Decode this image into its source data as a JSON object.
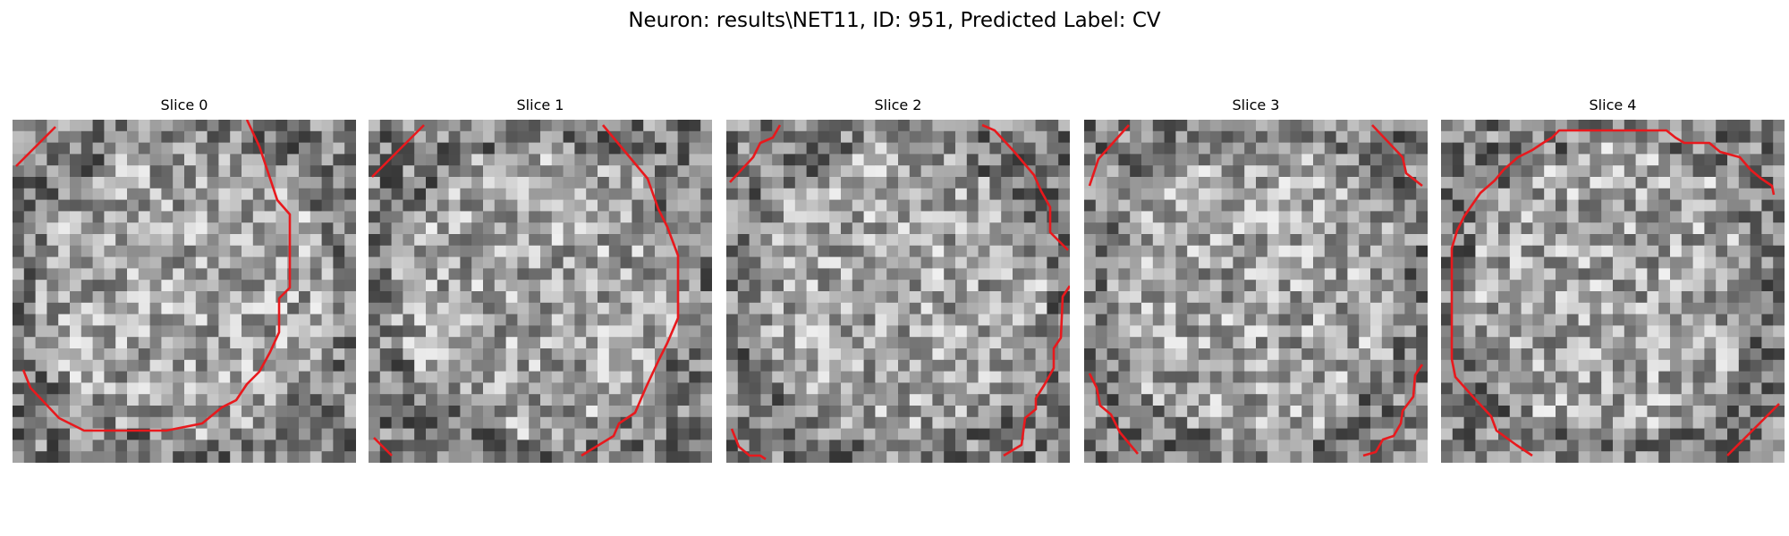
{
  "figure": {
    "title": "Neuron: results\\NET11, ID: 951, Predicted Label: CV",
    "contour_color": "#e8191d"
  },
  "panels": [
    {
      "title": "Slice 0",
      "seed": 11
    },
    {
      "title": "Slice 1",
      "seed": 23
    },
    {
      "title": "Slice 2",
      "seed": 37
    },
    {
      "title": "Slice 3",
      "seed": 41
    },
    {
      "title": "Slice 4",
      "seed": 53
    }
  ]
}
